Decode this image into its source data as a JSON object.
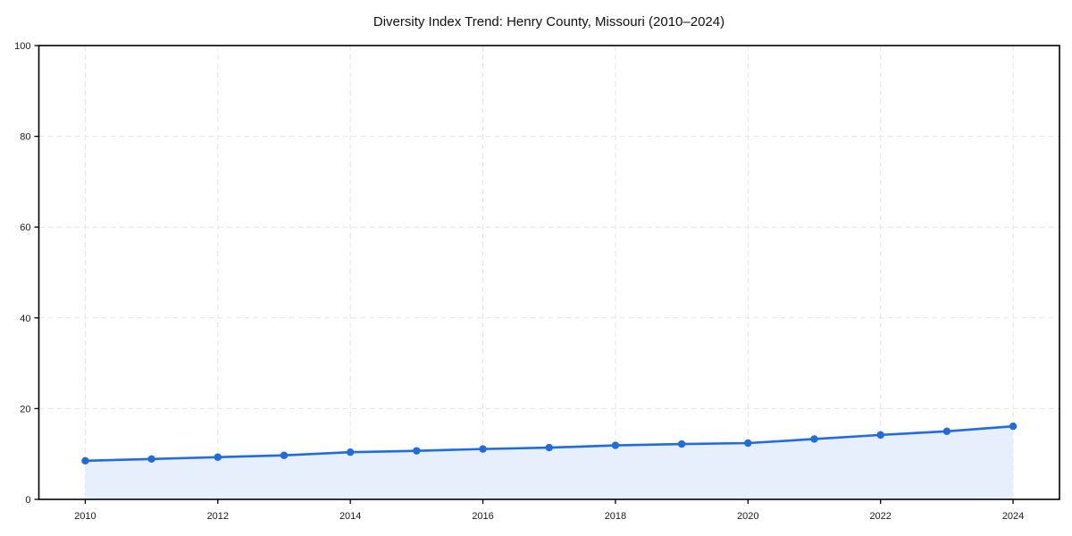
{
  "chart_data": {
    "type": "area",
    "title": "Diversity Index Trend: Henry County, Missouri (2010–2024)",
    "x": [
      2010,
      2011,
      2012,
      2013,
      2014,
      2015,
      2016,
      2017,
      2018,
      2019,
      2020,
      2021,
      2022,
      2023,
      2024
    ],
    "series": [
      {
        "name": "Diversity Index",
        "values": [
          8.5,
          8.9,
          9.3,
          9.7,
          10.4,
          10.7,
          11.1,
          11.4,
          11.9,
          12.2,
          12.4,
          13.3,
          14.2,
          15.0,
          16.1
        ]
      }
    ],
    "xlabel": "",
    "ylabel": "",
    "xlim": [
      2009.3,
      2024.7
    ],
    "ylim": [
      0,
      100
    ],
    "xticks": [
      2010,
      2012,
      2014,
      2016,
      2018,
      2020,
      2022,
      2024
    ],
    "yticks": [
      0,
      20,
      40,
      60,
      80,
      100
    ],
    "grid": true,
    "grid_style": "dashed",
    "legend": "none",
    "colors": {
      "line": "#1f6be0",
      "marker": "#1f6be0",
      "fill": "#e8effc",
      "grid": "#e5e5e5",
      "axis": "#000000",
      "text": "#1a1a1a"
    }
  }
}
